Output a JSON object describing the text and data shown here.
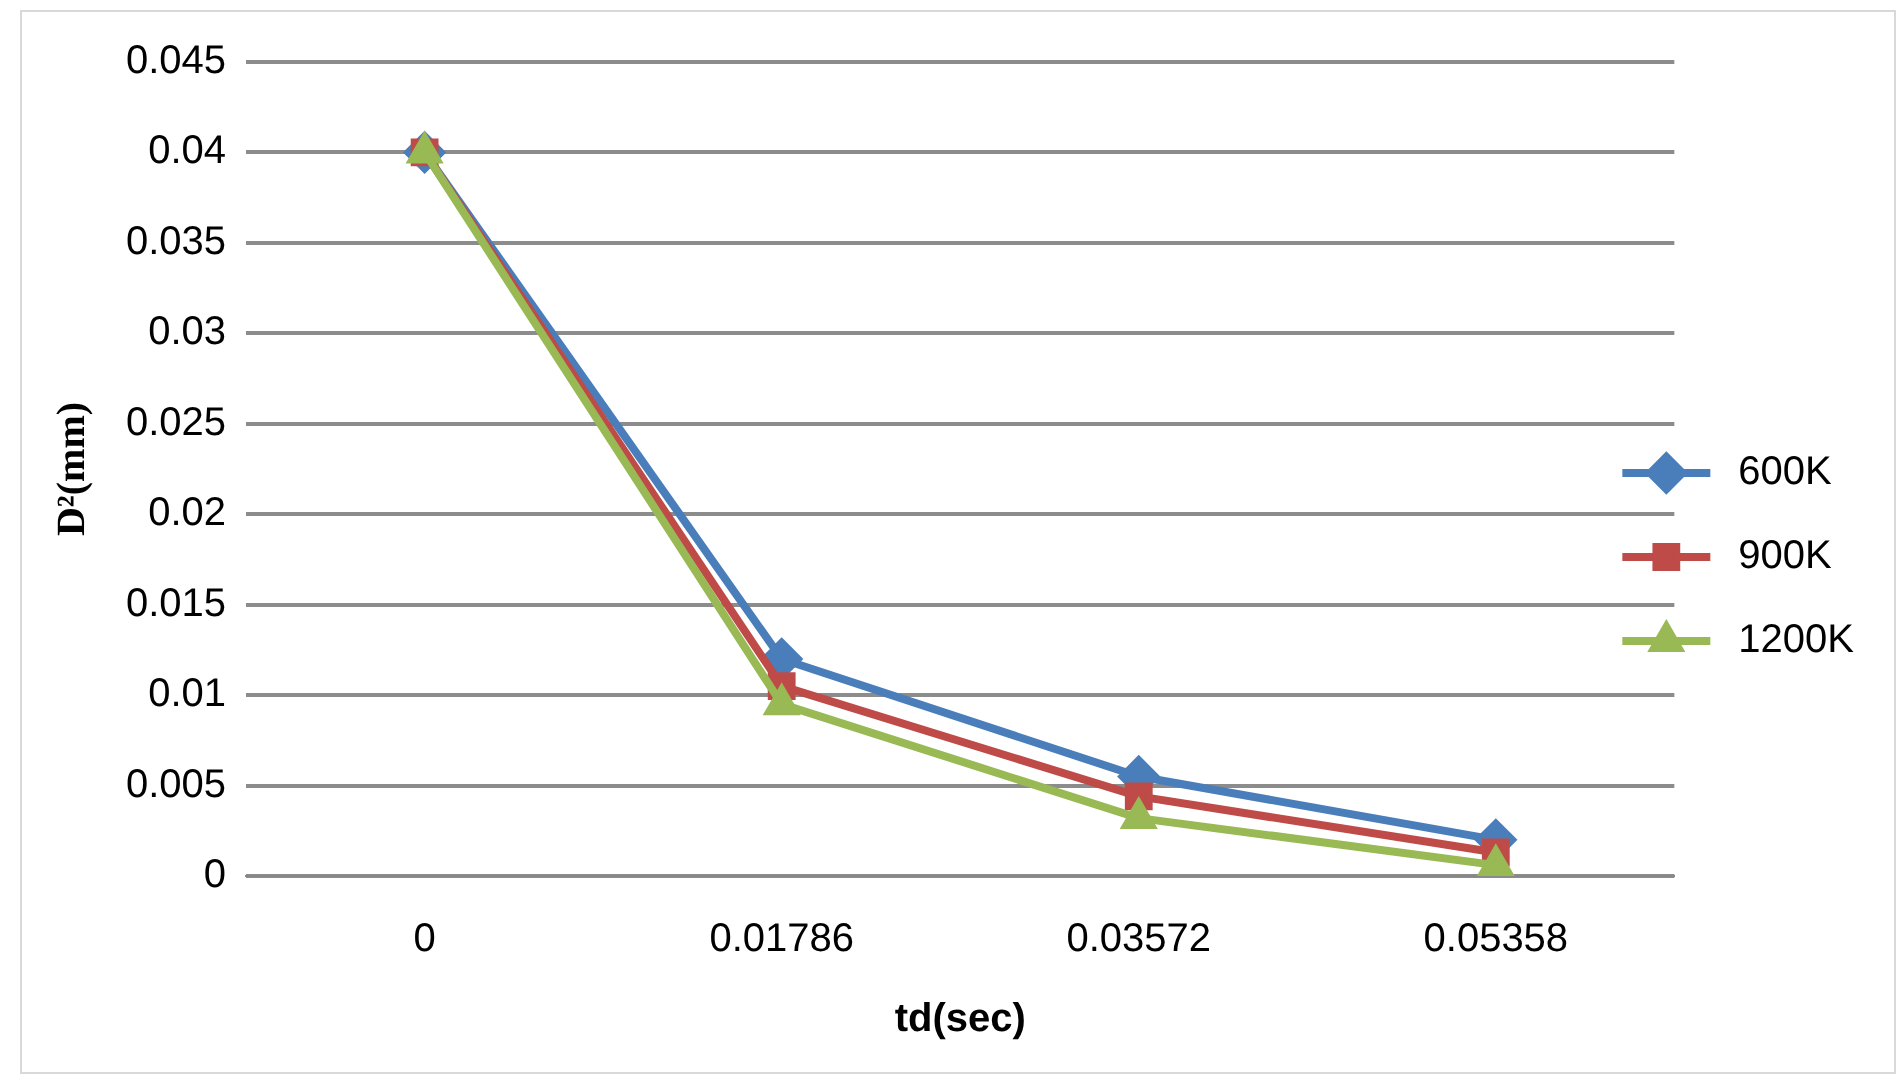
{
  "chart_data": {
    "type": "line",
    "xlabel": "td(sec)",
    "ylabel": "D²(mm)",
    "categories": [
      "0",
      "0.01786",
      "0.03572",
      "0.05358"
    ],
    "series": [
      {
        "name": "600K",
        "color": "#4a7ebb",
        "marker": "diamond",
        "values": [
          0.04,
          0.012,
          0.0055,
          0.002
        ]
      },
      {
        "name": "900K",
        "color": "#be4b48",
        "marker": "square",
        "values": [
          0.04,
          0.0105,
          0.0044,
          0.0013
        ]
      },
      {
        "name": "1200K",
        "color": "#98b954",
        "marker": "triangle",
        "values": [
          0.04,
          0.0095,
          0.0032,
          0.0006
        ]
      }
    ],
    "ylim": [
      0,
      0.045
    ],
    "yticks": [
      0,
      0.005,
      0.01,
      0.015,
      0.02,
      0.025,
      0.03,
      0.035,
      0.04,
      0.045
    ],
    "grid": "y",
    "legend": "right"
  }
}
